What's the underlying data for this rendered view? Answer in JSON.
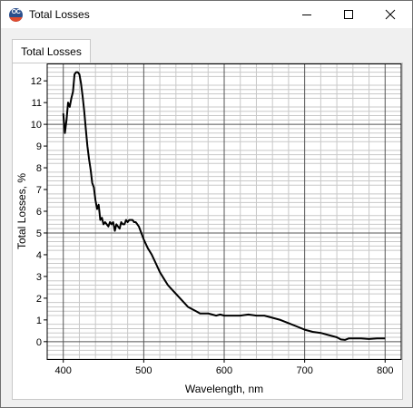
{
  "window": {
    "title": "Total Losses",
    "icon": "app-logo-icon",
    "controls": [
      "minimize-icon",
      "maximize-icon",
      "close-icon"
    ]
  },
  "tabs": [
    {
      "label": "Total Losses",
      "selected": true
    }
  ],
  "chart_data": {
    "type": "line",
    "title": "",
    "xlabel": "Wavelength, nm",
    "ylabel": "Total Losses, %",
    "xlim": [
      380,
      820
    ],
    "ylim": [
      -0.8,
      12.8
    ],
    "xticks": [
      400,
      500,
      600,
      700,
      800
    ],
    "yticks": [
      0,
      1,
      2,
      3,
      4,
      5,
      6,
      7,
      8,
      9,
      10,
      11,
      12
    ],
    "grid": true,
    "legend": "none",
    "line_color": "#000000",
    "series": [
      {
        "x": [
          400,
          402,
          404,
          406,
          408,
          410,
          412,
          414,
          416,
          418,
          420,
          422,
          424,
          426,
          428,
          430,
          432,
          434,
          436,
          438,
          440,
          442,
          444,
          446,
          448,
          450,
          452,
          454,
          456,
          458,
          460,
          462,
          464,
          466,
          468,
          470,
          472,
          474,
          476,
          478,
          480,
          482,
          484,
          486,
          488,
          490,
          492,
          494,
          496,
          498,
          500,
          505,
          510,
          515,
          520,
          525,
          530,
          535,
          540,
          545,
          550,
          555,
          560,
          565,
          570,
          575,
          580,
          585,
          590,
          595,
          600,
          610,
          620,
          630,
          640,
          650,
          660,
          670,
          680,
          690,
          700,
          710,
          720,
          730,
          740,
          745,
          750,
          755,
          760,
          770,
          780,
          790,
          800
        ],
        "y": [
          10.5,
          9.6,
          10.2,
          11.0,
          10.8,
          11.2,
          11.5,
          12.3,
          12.4,
          12.4,
          12.3,
          11.9,
          11.3,
          10.6,
          9.8,
          9.0,
          8.4,
          7.9,
          7.3,
          7.1,
          6.5,
          6.1,
          6.3,
          5.6,
          5.7,
          5.4,
          5.5,
          5.4,
          5.3,
          5.5,
          5.4,
          5.5,
          5.1,
          5.4,
          5.3,
          5.2,
          5.5,
          5.4,
          5.4,
          5.6,
          5.5,
          5.6,
          5.6,
          5.6,
          5.5,
          5.5,
          5.4,
          5.3,
          5.1,
          4.9,
          4.7,
          4.3,
          4.0,
          3.6,
          3.2,
          2.9,
          2.6,
          2.4,
          2.2,
          2.0,
          1.8,
          1.6,
          1.5,
          1.4,
          1.3,
          1.3,
          1.3,
          1.25,
          1.2,
          1.25,
          1.2,
          1.2,
          1.2,
          1.25,
          1.2,
          1.2,
          1.1,
          1.0,
          0.85,
          0.7,
          0.55,
          0.45,
          0.4,
          0.3,
          0.2,
          0.1,
          0.08,
          0.15,
          0.15,
          0.15,
          0.12,
          0.15,
          0.15
        ]
      }
    ]
  }
}
